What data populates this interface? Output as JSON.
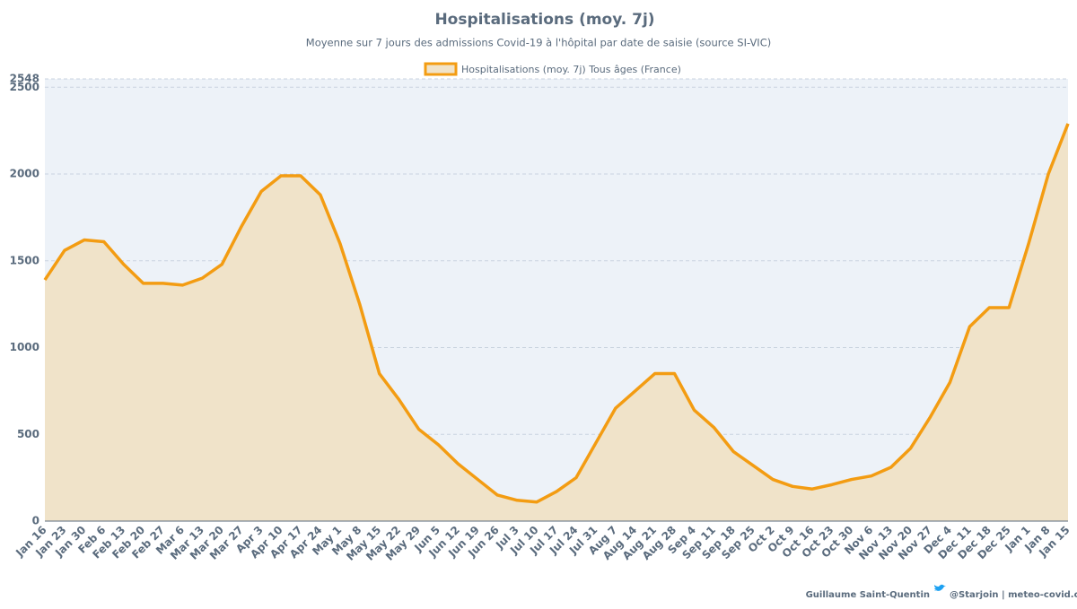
{
  "chart_data": {
    "type": "line",
    "title": "Hospitalisations (moy. 7j)",
    "subtitle": "Moyenne sur 7 jours des admissions Covid-19 à l'hôpital par date de saisie (source SI-VIC)",
    "categories": [
      "Jan 16",
      "Jan 23",
      "Jan 30",
      "Feb 6",
      "Feb 13",
      "Feb 20",
      "Feb 27",
      "Mar 6",
      "Mar 13",
      "Mar 20",
      "Mar 27",
      "Apr 3",
      "Apr 10",
      "Apr 17",
      "Apr 24",
      "May 1",
      "May 8",
      "May 15",
      "May 22",
      "May 29",
      "Jun 5",
      "Jun 12",
      "Jun 19",
      "Jun 26",
      "Jul 3",
      "Jul 10",
      "Jul 17",
      "Jul 24",
      "Jul 31",
      "Aug 7",
      "Aug 14",
      "Aug 21",
      "Aug 28",
      "Sep 4",
      "Sep 11",
      "Sep 18",
      "Sep 25",
      "Oct 2",
      "Oct 9",
      "Oct 16",
      "Oct 23",
      "Oct 30",
      "Nov 6",
      "Nov 13",
      "Nov 20",
      "Nov 27",
      "Dec 4",
      "Dec 11",
      "Dec 18",
      "Dec 25",
      "Jan 1",
      "Jan 8",
      "Jan 15"
    ],
    "series": [
      {
        "name": "Hospitalisations (moy. 7j) Tous âges (France)",
        "color": "#f39c12",
        "fill": "#f0e3c9",
        "values": [
          1390,
          1560,
          1620,
          1610,
          1480,
          1370,
          1370,
          1360,
          1400,
          1480,
          1700,
          1900,
          1990,
          1990,
          1880,
          1600,
          1250,
          850,
          700,
          530,
          440,
          330,
          240,
          150,
          120,
          110,
          170,
          250,
          450,
          650,
          750,
          850,
          850,
          640,
          540,
          400,
          320,
          240,
          200,
          185,
          210,
          240,
          260,
          310,
          420,
          600,
          800,
          1120,
          1230,
          1230,
          1600,
          2000,
          2290
        ]
      }
    ],
    "ylim": [
      0,
      2548
    ],
    "yticks": [
      0,
      500,
      1000,
      1500,
      2000,
      2500,
      2548
    ],
    "grid": true,
    "plot_background": "#edf2f8",
    "footer": {
      "author": "Guillaume Saint-Quentin",
      "source": "@Starjoin | meteo-covid.com"
    }
  }
}
